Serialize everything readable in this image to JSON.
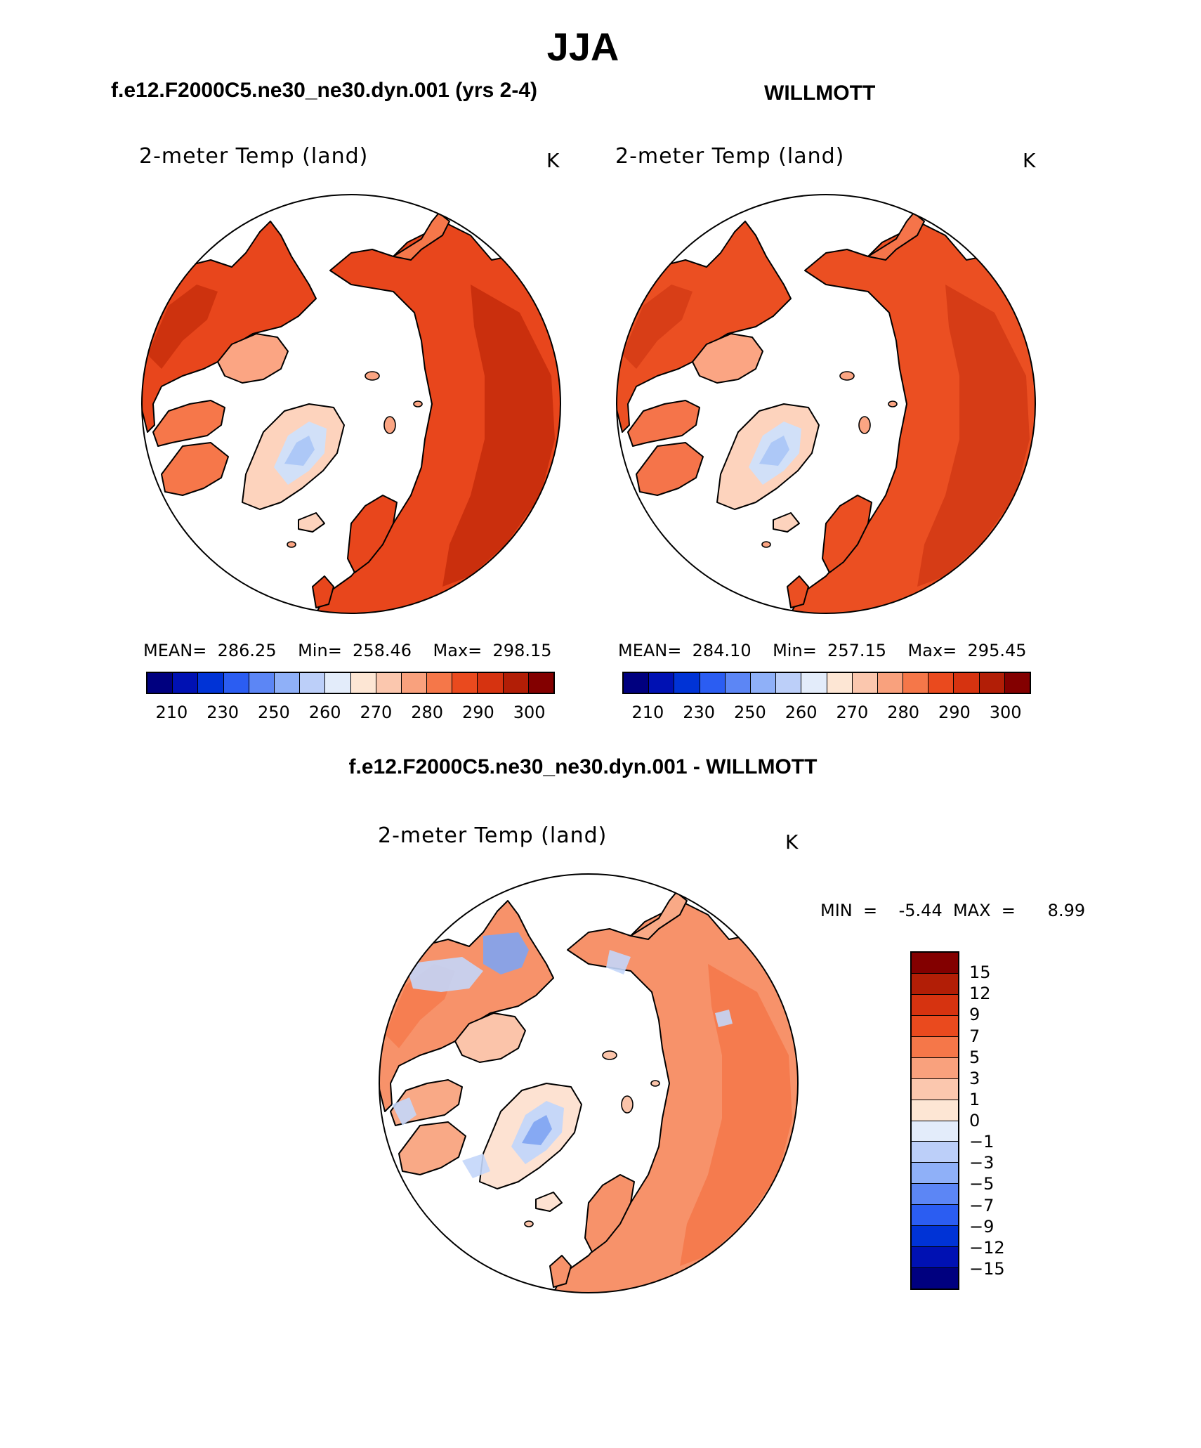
{
  "figure": {
    "season": "JJA",
    "left_subtitle": "f.e12.F2000C5.ne30_ne30.dyn.001 (yrs 2-4)",
    "right_subtitle": "WILLMOTT",
    "diff_subtitle": "f.e12.F2000C5.ne30_ne30.dyn.001 - WILLMOTT"
  },
  "panels": {
    "model": {
      "title": "2-meter Temp (land)",
      "units": "K",
      "stats": "MEAN=  286.25    Min=  258.46    Max=  298.15"
    },
    "obs": {
      "title": "2-meter Temp (land)",
      "units": "K",
      "stats": "MEAN=  284.10    Min=  257.15    Max=  295.45"
    },
    "diff": {
      "title": "2-meter Temp (land)",
      "units": "K",
      "stats": "MIN  =    -5.44  MAX  =      8.99"
    }
  },
  "colorbar_abs": {
    "ticks": [
      "210",
      "230",
      "250",
      "260",
      "270",
      "280",
      "290",
      "300"
    ],
    "colors": [
      "#00007f",
      "#0011b3",
      "#0033d6",
      "#2b5df2",
      "#5c86f5",
      "#8fb0f8",
      "#bccff9",
      "#e3ecfa",
      "#fde6d4",
      "#fbc7ae",
      "#f9a17d",
      "#f57749",
      "#ea4a1e",
      "#d63310",
      "#b21e06",
      "#830000"
    ]
  },
  "colorbar_diff": {
    "ticks": [
      "15",
      "12",
      "9",
      "7",
      "5",
      "3",
      "1",
      "0",
      "−1",
      "−3",
      "−5",
      "−7",
      "−9",
      "−12",
      "−15"
    ],
    "colors": [
      "#830000",
      "#b21e06",
      "#d63310",
      "#ea4a1e",
      "#f57749",
      "#f9a17d",
      "#fbc7ae",
      "#fde6d4",
      "#e3ecfa",
      "#bccff9",
      "#8fb0f8",
      "#5c86f5",
      "#2b5df2",
      "#0033d6",
      "#0011b3",
      "#00007f"
    ]
  },
  "map_colors": {
    "model": {
      "warm": "#e8461c",
      "mid": "#f6774a",
      "cool": "#fba583",
      "pale": "#fdd3bd",
      "ice": "#cfe0fb",
      "ice2": "#a9c5f6",
      "dark": "#c42c0a"
    },
    "obs": {
      "warm": "#eb4f22",
      "mid": "#f5744a",
      "cool": "#fba583",
      "pale": "#fdd3bd",
      "ice": "#cfe0fb",
      "ice2": "#a9c5f6",
      "dark": "#d23814"
    },
    "diff": {
      "warm": "#f7926a",
      "mid": "#f9a986",
      "cool": "#fbc4aa",
      "pale": "#fde2d2",
      "ice": "#c3d6fa",
      "ice2": "#7ea4f2",
      "dark": "#f57749"
    }
  }
}
